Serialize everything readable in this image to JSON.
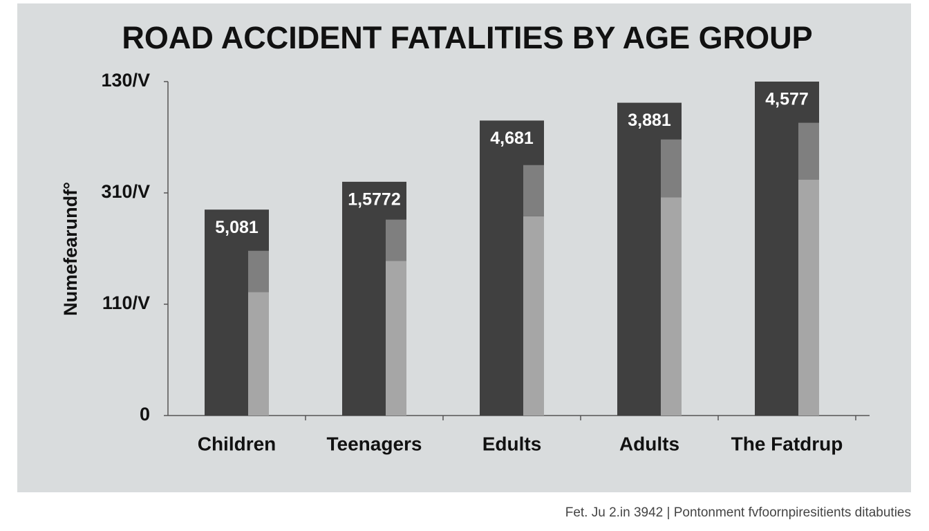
{
  "chart_data": {
    "type": "bar",
    "title": "ROAD ACCIDENT FATALITIES BY AGE GROUP",
    "y_label": "Numefearundf°",
    "source": "Fet. Ju 2.in 3942 | Pontonment fvfoornpiresitients ditabuties",
    "categories": [
      "Children",
      "Teenagers",
      "Edults",
      "Adults",
      "The Fatdrup"
    ],
    "series": [
      {
        "color": "#404040",
        "values": [
          1.85,
          2.1,
          2.65,
          2.81,
          3.0
        ],
        "annotations": [
          "5,081",
          "1,5772",
          "4,681",
          "3,881",
          "4,577"
        ]
      },
      {
        "color": "#a6a6a6",
        "values": [
          1.11,
          1.39,
          1.79,
          1.96,
          2.12
        ]
      },
      {
        "color": "#7f7f7f",
        "values": [
          0.37,
          0.37,
          0.46,
          0.52,
          0.51
        ]
      }
    ],
    "ylim": [
      0,
      3
    ],
    "yticks": [
      0,
      {
        "value": 1,
        "label": "110/V"
      },
      {
        "value": 2,
        "label": "310/V"
      },
      {
        "value": 3,
        "label": "130/V"
      }
    ]
  }
}
